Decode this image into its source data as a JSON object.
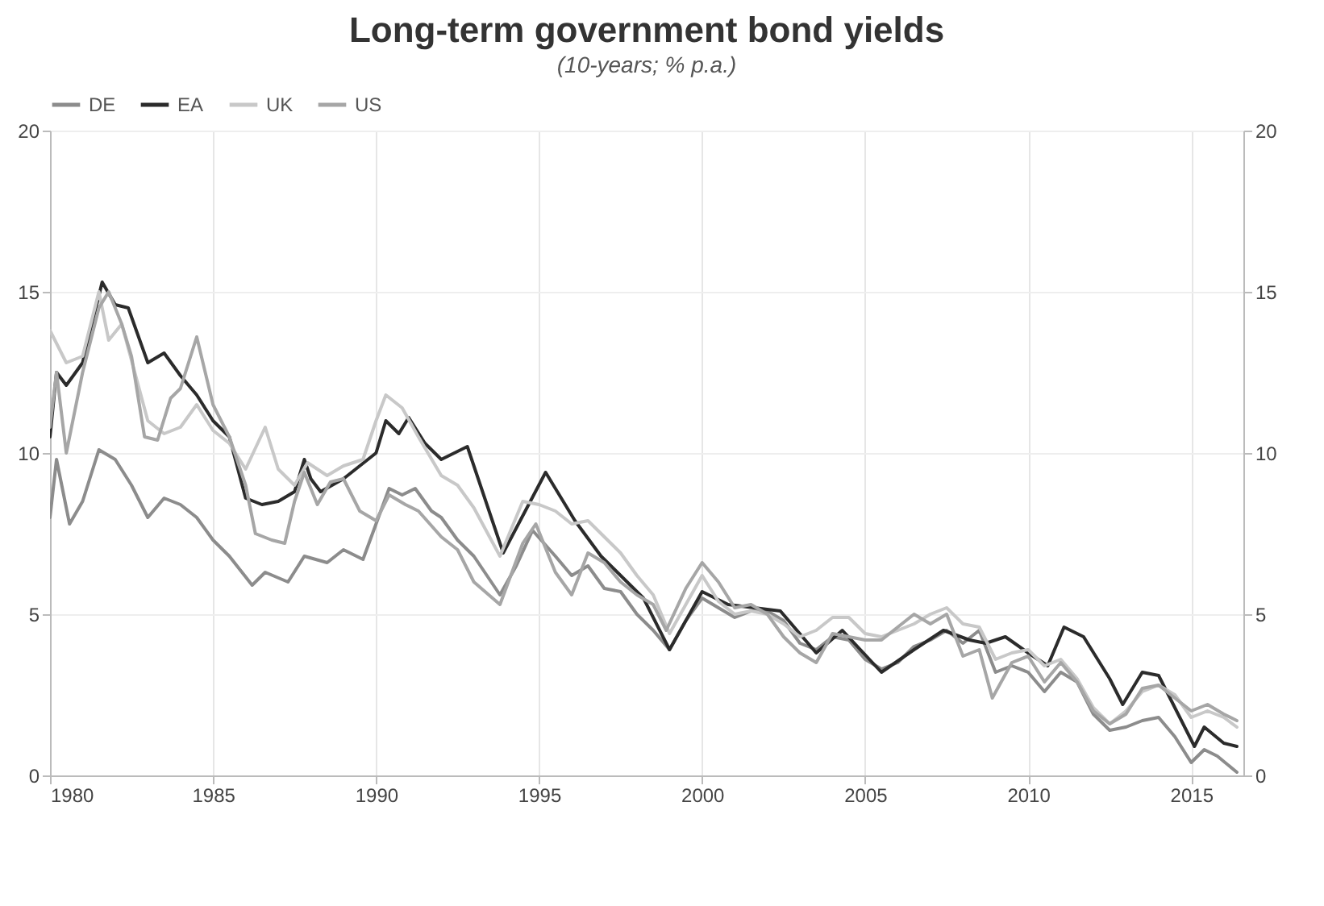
{
  "chart_data": {
    "type": "line",
    "title": "Long-term government bond yields",
    "subtitle": "(10-years; % p.a.)",
    "xlim": [
      1980,
      2016.6
    ],
    "xticks": [
      1980,
      1985,
      1990,
      1995,
      2000,
      2005,
      2010,
      2015
    ],
    "ylim": [
      0,
      20
    ],
    "yticks": [
      0,
      5,
      10,
      15,
      20
    ],
    "y2lim": [
      0,
      20
    ],
    "y2ticks": [
      0,
      5,
      10,
      15,
      20
    ],
    "grid": true,
    "legend": "top",
    "line_style": "solid",
    "marker": "none",
    "series": [
      {
        "name": "DE",
        "color": "#8c8c8c",
        "x": [
          1980,
          1980.2,
          1980.6,
          1981,
          1981.5,
          1982,
          1982.5,
          1983,
          1983.5,
          1984,
          1984.5,
          1985,
          1985.5,
          1986.2,
          1986.6,
          1987.3,
          1987.8,
          1988.5,
          1989,
          1989.6,
          1990,
          1990.4,
          1990.8,
          1991.2,
          1991.7,
          1992,
          1992.5,
          1993,
          1993.8,
          1994.3,
          1994.8,
          1995.5,
          1996,
          1996.5,
          1997,
          1997.5,
          1998,
          1998.5,
          1999,
          1999.5,
          2000,
          2000.5,
          2001,
          2001.5,
          2002,
          2002.5,
          2003,
          2003.5,
          2004,
          2004.5,
          2005,
          2005.5,
          2006,
          2006.5,
          2007,
          2007.5,
          2008,
          2008.5,
          2009,
          2009.5,
          2010,
          2010.5,
          2011,
          2011.5,
          2012,
          2012.5,
          2013,
          2013.5,
          2014,
          2014.5,
          2015,
          2015.4,
          2015.8,
          2016.4
        ],
        "values": [
          8.0,
          9.8,
          7.8,
          8.5,
          10.1,
          9.8,
          9.0,
          8.0,
          8.6,
          8.4,
          8.0,
          7.3,
          6.8,
          5.9,
          6.3,
          6.0,
          6.8,
          6.6,
          7.0,
          6.7,
          7.8,
          8.9,
          8.7,
          8.9,
          8.2,
          8.0,
          7.3,
          6.8,
          5.6,
          6.5,
          7.6,
          6.8,
          6.2,
          6.5,
          5.8,
          5.7,
          5.0,
          4.5,
          3.9,
          4.8,
          5.5,
          5.2,
          4.9,
          5.1,
          5.1,
          4.8,
          4.1,
          3.9,
          4.3,
          4.2,
          3.6,
          3.3,
          3.5,
          4.0,
          4.2,
          4.5,
          4.1,
          4.5,
          3.2,
          3.4,
          3.2,
          2.6,
          3.2,
          2.9,
          1.9,
          1.4,
          1.5,
          1.7,
          1.8,
          1.2,
          0.4,
          0.8,
          0.6,
          0.1
        ]
      },
      {
        "name": "EA",
        "color": "#2b2b2b",
        "x": [
          1980,
          1980.2,
          1980.5,
          1981,
          1981.6,
          1982,
          1982.4,
          1983,
          1983.5,
          1984,
          1984.5,
          1985,
          1985.5,
          1986,
          1986.5,
          1987,
          1987.5,
          1987.8,
          1988,
          1988.3,
          1989,
          1989.5,
          1990,
          1990.3,
          1990.7,
          1991,
          1991.5,
          1992,
          1992.8,
          1993.9,
          1995.2,
          1996.1,
          1996.9,
          1998.2,
          1999,
          2000,
          2000.8,
          2002.4,
          2003.5,
          2004.3,
          2005.5,
          2006.5,
          2007.4,
          2008.2,
          2008.7,
          2009.3,
          2010,
          2010.6,
          2011.1,
          2011.7,
          2012.5,
          2012.9,
          2013.5,
          2014,
          2015.1,
          2015.4,
          2016,
          2016.4
        ],
        "values": [
          10.5,
          12.5,
          12.1,
          12.8,
          15.3,
          14.6,
          14.5,
          12.8,
          13.1,
          12.4,
          11.8,
          11.0,
          10.5,
          8.6,
          8.4,
          8.5,
          8.8,
          9.8,
          9.2,
          8.8,
          9.2,
          9.6,
          10.0,
          11.0,
          10.6,
          11.1,
          10.3,
          9.8,
          10.2,
          6.9,
          9.4,
          7.9,
          6.8,
          5.5,
          3.9,
          5.7,
          5.3,
          5.1,
          3.8,
          4.5,
          3.2,
          3.9,
          4.5,
          4.2,
          4.1,
          4.3,
          3.8,
          3.4,
          4.6,
          4.3,
          3.0,
          2.2,
          3.2,
          3.1,
          0.9,
          1.5,
          1.0,
          0.9
        ]
      },
      {
        "name": "UK",
        "color": "#c8c8c8",
        "x": [
          1980,
          1980.5,
          1981,
          1981.5,
          1981.8,
          1982.2,
          1982.6,
          1983,
          1983.5,
          1984,
          1984.5,
          1985,
          1985.5,
          1986,
          1986.6,
          1987,
          1987.5,
          1987.9,
          1988.5,
          1989,
          1989.6,
          1990,
          1990.3,
          1990.8,
          1991.3,
          1992,
          1992.5,
          1993,
          1993.8,
          1994.5,
          1995,
          1995.5,
          1996,
          1996.5,
          1997,
          1997.5,
          1998,
          1998.5,
          1999,
          1999.5,
          2000,
          2000.5,
          2001,
          2001.5,
          2002,
          2002.5,
          2003,
          2003.5,
          2004,
          2004.5,
          2005,
          2005.5,
          2006,
          2006.5,
          2007,
          2007.5,
          2008,
          2008.5,
          2009,
          2009.5,
          2010,
          2010.5,
          2011,
          2011.5,
          2012,
          2012.5,
          2013,
          2013.5,
          2014,
          2014.5,
          2015,
          2015.5,
          2016,
          2016.4
        ],
        "values": [
          13.8,
          12.8,
          13.0,
          15.0,
          13.5,
          14.0,
          12.5,
          11.0,
          10.6,
          10.8,
          11.5,
          10.7,
          10.3,
          9.5,
          10.8,
          9.5,
          9.0,
          9.7,
          9.3,
          9.6,
          9.8,
          11.0,
          11.8,
          11.4,
          10.5,
          9.3,
          9.0,
          8.3,
          6.8,
          8.5,
          8.4,
          8.2,
          7.8,
          7.9,
          7.4,
          6.9,
          6.2,
          5.6,
          4.4,
          5.3,
          6.2,
          5.4,
          5.0,
          5.1,
          5.0,
          4.7,
          4.3,
          4.5,
          4.9,
          4.9,
          4.4,
          4.3,
          4.5,
          4.7,
          5.0,
          5.2,
          4.7,
          4.6,
          3.6,
          3.8,
          3.9,
          3.4,
          3.6,
          3.0,
          2.1,
          1.6,
          2.0,
          2.6,
          2.8,
          2.5,
          1.8,
          2.0,
          1.8,
          1.5
        ]
      },
      {
        "name": "US",
        "color": "#a6a6a6",
        "x": [
          1980,
          1980.2,
          1980.5,
          1981,
          1981.5,
          1981.8,
          1982.2,
          1982.5,
          1982.9,
          1983.3,
          1983.7,
          1984,
          1984.5,
          1985,
          1985.5,
          1986,
          1986.3,
          1986.8,
          1987.2,
          1987.5,
          1987.8,
          1988.2,
          1988.6,
          1989,
          1989.5,
          1990,
          1990.4,
          1990.9,
          1991.3,
          1992,
          1992.5,
          1993,
          1993.8,
          1994.5,
          1994.9,
          1995.5,
          1996,
          1996.5,
          1997,
          1997.5,
          1998,
          1998.5,
          1998.9,
          1999.5,
          2000,
          2000.5,
          2001,
          2001.5,
          2002,
          2002.5,
          2003,
          2003.5,
          2004,
          2004.5,
          2005,
          2005.5,
          2006,
          2006.5,
          2007,
          2007.5,
          2008,
          2008.5,
          2008.9,
          2009.5,
          2010,
          2010.5,
          2011,
          2011.5,
          2012,
          2012.5,
          2013,
          2013.5,
          2014,
          2014.5,
          2015,
          2015.5,
          2016,
          2016.4
        ],
        "values": [
          10.8,
          12.5,
          10.0,
          12.5,
          14.5,
          15.0,
          14.0,
          13.0,
          10.5,
          10.4,
          11.7,
          12.0,
          13.6,
          11.5,
          10.5,
          9.0,
          7.5,
          7.3,
          7.2,
          8.5,
          9.4,
          8.4,
          9.1,
          9.2,
          8.2,
          7.9,
          8.7,
          8.4,
          8.2,
          7.4,
          7.0,
          6.0,
          5.3,
          7.2,
          7.8,
          6.3,
          5.6,
          6.9,
          6.6,
          6.0,
          5.6,
          5.3,
          4.5,
          5.8,
          6.6,
          6.0,
          5.2,
          5.3,
          5.0,
          4.3,
          3.8,
          3.5,
          4.4,
          4.3,
          4.2,
          4.2,
          4.6,
          5.0,
          4.7,
          5.0,
          3.7,
          3.9,
          2.4,
          3.5,
          3.7,
          2.9,
          3.5,
          2.9,
          2.0,
          1.6,
          1.9,
          2.7,
          2.8,
          2.4,
          2.0,
          2.2,
          1.9,
          1.7
        ]
      }
    ]
  }
}
